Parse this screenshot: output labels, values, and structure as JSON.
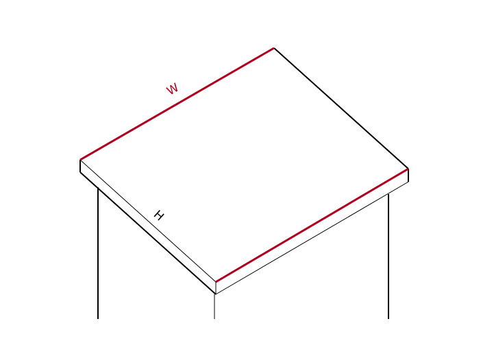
{
  "labels": {
    "width": "W",
    "height": "H"
  },
  "colors": {
    "highlight": "#b0001e",
    "outline": "#000000",
    "background": "#ffffff"
  }
}
